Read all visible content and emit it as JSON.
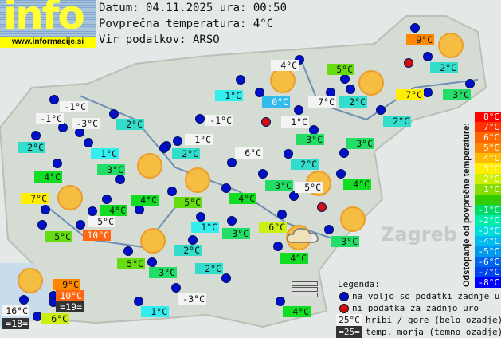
{
  "logo": {
    "text": "info",
    "url": "www.informacije.si"
  },
  "header": {
    "date_line": "Datum: 04.11.2025 ura: 00:50",
    "avg_line": "Povprečna temperatura: 4°C",
    "source_line": "Vir podatkov: ARSO"
  },
  "place_labels": {
    "zagreb": "Zagreb"
  },
  "label_colors": {
    "white": "#f4f4f4",
    "dark": "#333333",
    "blue": "#33bbee",
    "cyan": "#33eeee",
    "teal": "#33ddcc",
    "green3": "#22dd66",
    "green4": "#11dd22",
    "lgreen": "#66dd11",
    "ygreen": "#ccee11",
    "yellow": "#ffee00",
    "orange": "#ff8800",
    "orange2": "#ff6611"
  },
  "stations": [
    {
      "t": "-1°C",
      "s": "white"
    },
    {
      "t": "-1°C",
      "s": "white"
    },
    {
      "t": "-3°C",
      "s": "white"
    },
    {
      "t": "2°C",
      "s": "teal"
    },
    {
      "t": "2°C",
      "s": "teal"
    },
    {
      "t": "1°C",
      "s": "cyan"
    },
    {
      "t": "4°C",
      "s": "green4"
    },
    {
      "t": "3°C",
      "s": "green3"
    },
    {
      "t": "7°C",
      "s": "yellow"
    },
    {
      "t": "4°C",
      "s": "green4"
    },
    {
      "t": "4°C",
      "s": "green4"
    },
    {
      "t": "-1°C",
      "s": "white"
    },
    {
      "t": "1°C",
      "s": "white"
    },
    {
      "t": "2°C",
      "s": "teal"
    },
    {
      "t": "6°C",
      "s": "white"
    },
    {
      "t": "5°C",
      "s": "lgreen"
    },
    {
      "t": "4°C",
      "s": "green4"
    },
    {
      "t": "4°C",
      "s": "white"
    },
    {
      "t": "1°C",
      "s": "cyan"
    },
    {
      "t": "0°C",
      "s": "blue"
    },
    {
      "t": "7°C",
      "s": "white"
    },
    {
      "t": "2°C",
      "s": "teal"
    },
    {
      "t": "5°C",
      "s": "lgreen"
    },
    {
      "t": "1°C",
      "s": "white"
    },
    {
      "t": "3°C",
      "s": "green3"
    },
    {
      "t": "3°C",
      "s": "green3"
    },
    {
      "t": "2°C",
      "s": "teal"
    },
    {
      "t": "9°C",
      "s": "orange"
    },
    {
      "t": "2°C",
      "s": "teal"
    },
    {
      "t": "7°C",
      "s": "yellow"
    },
    {
      "t": "3°C",
      "s": "green3"
    },
    {
      "t": "2°C",
      "s": "teal"
    },
    {
      "t": "3°C",
      "s": "green3"
    },
    {
      "t": "5°C",
      "s": "white"
    },
    {
      "t": "4°C",
      "s": "green4"
    },
    {
      "t": "6°C",
      "s": "ygreen"
    },
    {
      "t": "3°C",
      "s": "green3"
    },
    {
      "t": "4°C",
      "s": "green4"
    },
    {
      "t": "4°C",
      "s": "green4"
    },
    {
      "t": "1°C",
      "s": "cyan"
    },
    {
      "t": "3°C",
      "s": "green3"
    },
    {
      "t": "2°C",
      "s": "teal"
    },
    {
      "t": "5°C",
      "s": "lgreen"
    },
    {
      "t": "3°C",
      "s": "green3"
    },
    {
      "t": "2°C",
      "s": "teal"
    },
    {
      "t": "-3°C",
      "s": "white"
    },
    {
      "t": "1°C",
      "s": "cyan"
    },
    {
      "t": "5°C",
      "s": "white"
    },
    {
      "t": "10°C",
      "s": "orange2"
    },
    {
      "t": "5°C",
      "s": "lgreen"
    },
    {
      "t": "9°C",
      "s": "orange"
    },
    {
      "t": "10°C",
      "s": "orange2"
    },
    {
      "t": "=19=",
      "s": "dark"
    },
    {
      "t": "16°C",
      "s": "white"
    },
    {
      "t": "=18=",
      "s": "dark"
    },
    {
      "t": "6°C",
      "s": "ygreen"
    }
  ],
  "scale": {
    "title": "Odstopanje od povprečne temperature:",
    "steps": [
      {
        "label": "8°C",
        "color": "#ff0000"
      },
      {
        "label": "7°C",
        "color": "#ff3300"
      },
      {
        "label": "6°C",
        "color": "#ff6600"
      },
      {
        "label": "5°C",
        "color": "#ff8800"
      },
      {
        "label": "4°C",
        "color": "#ffbb00"
      },
      {
        "label": "3°C",
        "color": "#ffee00"
      },
      {
        "label": "2°C",
        "color": "#ccee00"
      },
      {
        "label": "1°C",
        "color": "#88dd00"
      },
      {
        "label": "",
        "color": "#33cc00"
      },
      {
        "label": "-1°C",
        "color": "#00dd66"
      },
      {
        "label": "-2°C",
        "color": "#00eeaa"
      },
      {
        "label": "-3°C",
        "color": "#00dddd"
      },
      {
        "label": "-4°C",
        "color": "#00bbee"
      },
      {
        "label": "-5°C",
        "color": "#0099ee"
      },
      {
        "label": "-6°C",
        "color": "#0066ee"
      },
      {
        "label": "-7°C",
        "color": "#0044ee"
      },
      {
        "label": "-8°C",
        "color": "#0000ff"
      }
    ]
  },
  "legend": {
    "title": "Legenda:",
    "available": "na voljo so podatki zadnje ure",
    "missing": "ni podatka za zadnjo uro",
    "hills_sample": "25°C",
    "hills": "hribi / gore (belo ozadje)",
    "sea_sample": "=25=",
    "sea": "temp. morja (temno ozadje)"
  }
}
